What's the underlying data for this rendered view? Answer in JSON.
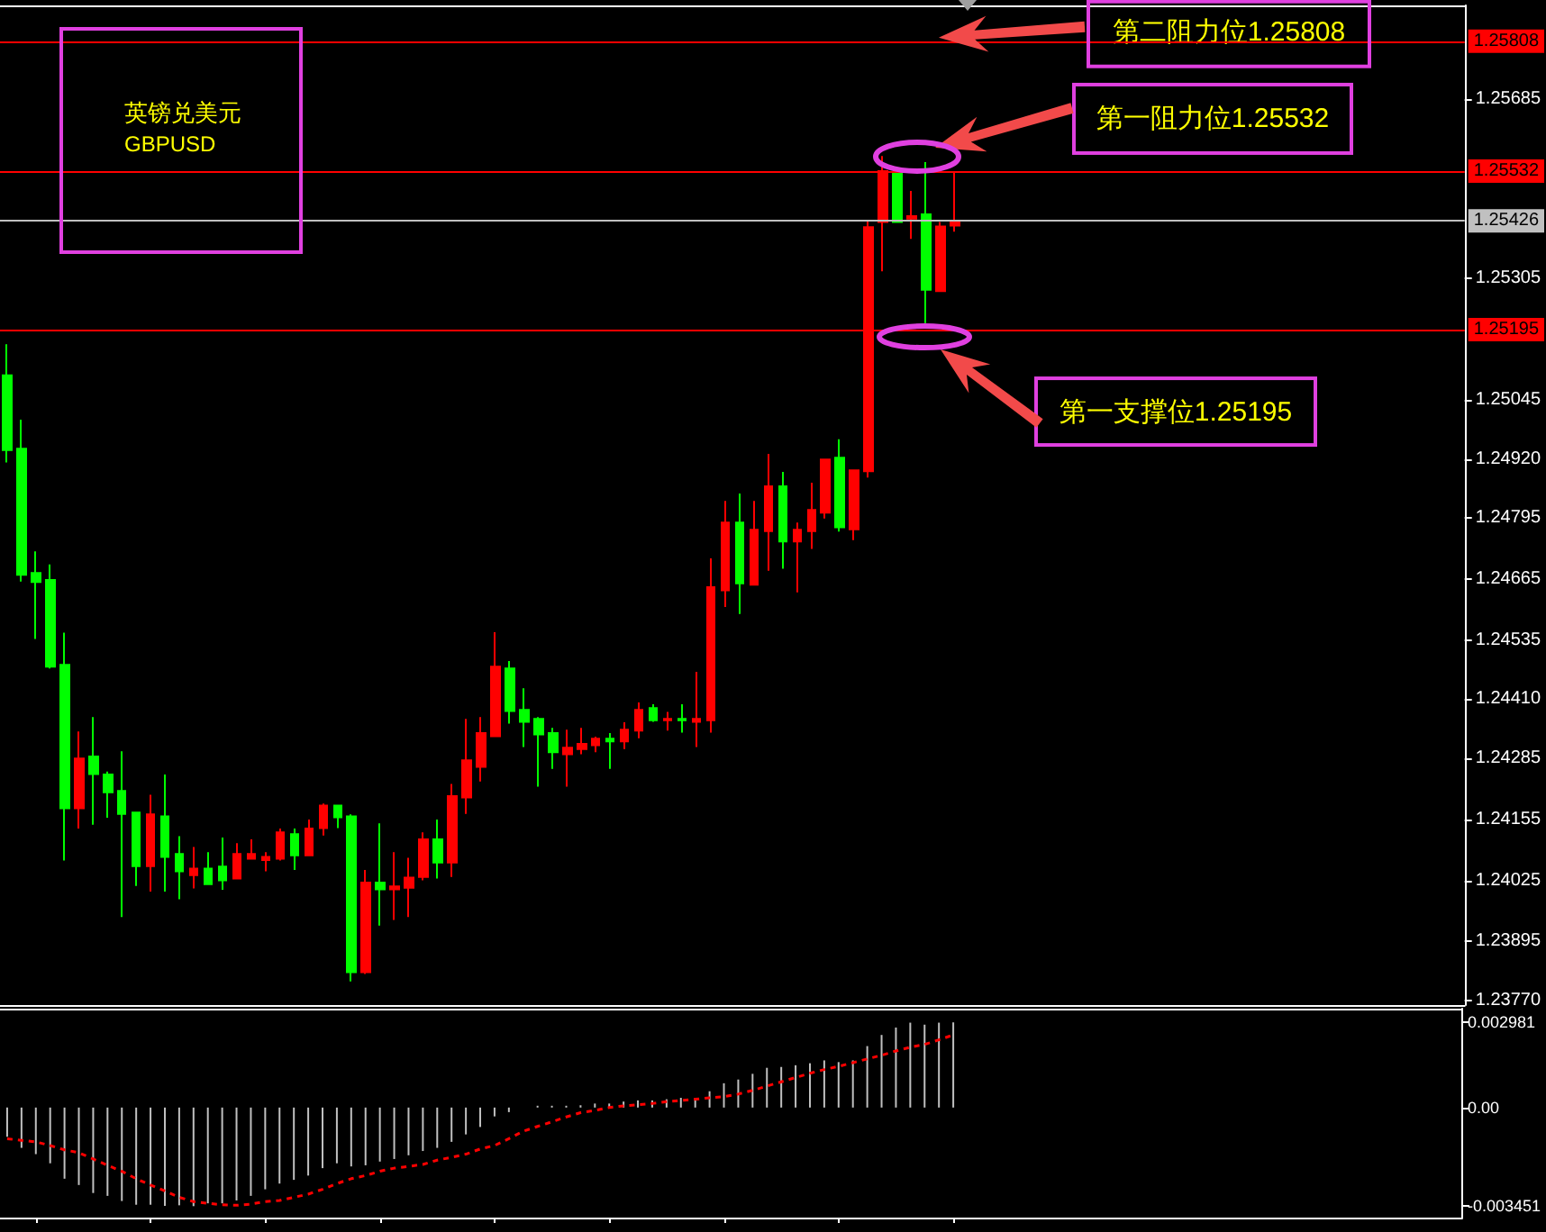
{
  "chart_data": [
    {
      "type": "candlestick",
      "title": "英镑兑美元",
      "subtitle": "GBPUSD",
      "categories": [
        null,
        null,
        null,
        null,
        null,
        null,
        null,
        null,
        null,
        null,
        null,
        null,
        null,
        null,
        null,
        null,
        null,
        null,
        null,
        null,
        null,
        null,
        null,
        null,
        null,
        null,
        null,
        null,
        null,
        null,
        null,
        null,
        null,
        null,
        null,
        null,
        null,
        null,
        null,
        null,
        null,
        null,
        null,
        null,
        null,
        null,
        null,
        null,
        null,
        null,
        null,
        null,
        null,
        null,
        null,
        null,
        null,
        null,
        null,
        null,
        null,
        null,
        null,
        null,
        null,
        null,
        null,
        null,
        null,
        null,
        null,
        null,
        null,
        null,
        null,
        null,
        null,
        null,
        null,
        null,
        null,
        null,
        null,
        null,
        null,
        null,
        null,
        null,
        null,
        null,
        null,
        null,
        null,
        null,
        null,
        null,
        null,
        null,
        null,
        null,
        null,
        null
      ],
      "ohlc": [
        [
          1.25098,
          1.25164,
          1.24913,
          1.24939
        ],
        [
          1.24942,
          1.25004,
          1.2466,
          1.24674
        ],
        [
          1.24678,
          1.24724,
          1.24538,
          1.24659
        ],
        [
          1.24663,
          1.24696,
          1.24475,
          1.24479
        ],
        [
          1.24483,
          1.24551,
          1.24067,
          1.24178
        ],
        [
          1.24178,
          1.24341,
          1.24135,
          1.24284
        ],
        [
          1.24288,
          1.24372,
          1.24143,
          1.24251
        ],
        [
          1.2425,
          1.24256,
          1.24158,
          1.24212
        ],
        [
          1.24215,
          1.24299,
          1.23947,
          1.24166
        ],
        [
          1.24169,
          1.24169,
          1.24013,
          1.24055
        ],
        [
          1.24055,
          1.24207,
          1.24001,
          1.24165
        ],
        [
          1.24161,
          1.2425,
          1.24001,
          1.24075
        ],
        [
          1.24081,
          1.24119,
          1.23985,
          1.24044
        ],
        [
          1.24036,
          1.24096,
          1.24008,
          1.2405
        ],
        [
          1.2405,
          1.24085,
          1.24017,
          1.24017
        ],
        [
          1.24054,
          1.24116,
          1.24005,
          1.24025
        ],
        [
          1.24029,
          1.24104,
          1.24029,
          1.24081
        ],
        [
          1.24071,
          1.24112,
          1.24071,
          1.24081
        ],
        [
          1.24068,
          1.24085,
          1.24044,
          1.24075
        ],
        [
          1.24071,
          1.24135,
          1.24067,
          1.24127
        ],
        [
          1.24123,
          1.24135,
          1.24047,
          1.24078
        ],
        [
          1.24078,
          1.24154,
          1.24078,
          1.24135
        ],
        [
          1.24136,
          1.24188,
          1.2412,
          1.24184
        ],
        [
          1.24184,
          1.24184,
          1.24136,
          1.24159
        ],
        [
          1.24161,
          1.24165,
          1.2381,
          1.2383
        ],
        [
          1.2383,
          1.24047,
          1.23826,
          1.2402
        ],
        [
          1.2402,
          1.24146,
          1.23929,
          1.24006
        ],
        [
          1.24006,
          1.24085,
          1.23941,
          1.24012
        ],
        [
          1.24009,
          1.24073,
          1.23947,
          1.24031
        ],
        [
          1.24032,
          1.24127,
          1.24025,
          1.24112
        ],
        [
          1.24112,
          1.24154,
          1.24029,
          1.24063
        ],
        [
          1.24063,
          1.2423,
          1.24032,
          1.24204
        ],
        [
          1.24201,
          1.24368,
          1.24166,
          1.2428
        ],
        [
          1.24266,
          1.24372,
          1.24235,
          1.24338
        ],
        [
          1.24331,
          1.24552,
          1.24331,
          1.24479
        ],
        [
          1.24475,
          1.24491,
          1.24358,
          1.24385
        ],
        [
          1.24387,
          1.24433,
          1.24308,
          1.24362
        ],
        [
          1.24368,
          1.24372,
          1.24224,
          1.24335
        ],
        [
          1.24338,
          1.24349,
          1.24262,
          1.24297
        ],
        [
          1.24293,
          1.24345,
          1.24224,
          1.24307
        ],
        [
          1.24304,
          1.24349,
          1.24293,
          1.24315
        ],
        [
          1.24312,
          1.2433,
          1.24297,
          1.24326
        ],
        [
          1.24326,
          1.24338,
          1.24262,
          1.2432
        ],
        [
          1.2432,
          1.24361,
          1.24304,
          1.24345
        ],
        [
          1.24343,
          1.24403,
          1.24327,
          1.24387
        ],
        [
          1.24391,
          1.24399,
          1.24362,
          1.24365
        ],
        [
          1.24365,
          1.24383,
          1.24343,
          1.24368
        ],
        [
          1.24368,
          1.24399,
          1.24339,
          1.24365
        ],
        [
          1.24362,
          1.24468,
          1.24308,
          1.24368
        ],
        [
          1.24365,
          1.24709,
          1.24339,
          1.24648
        ],
        [
          1.24641,
          1.24831,
          1.24606,
          1.24785
        ],
        [
          1.24785,
          1.24847,
          1.24591,
          1.24656
        ],
        [
          1.24653,
          1.24831,
          1.24653,
          1.2477
        ],
        [
          1.24767,
          1.24931,
          1.24683,
          1.24862
        ],
        [
          1.24862,
          1.24893,
          1.24687,
          1.24745
        ],
        [
          1.24745,
          1.24785,
          1.24637,
          1.2477
        ],
        [
          1.24767,
          1.2487,
          1.24729,
          1.24812
        ],
        [
          1.24806,
          1.24919,
          1.24794,
          1.24919
        ],
        [
          1.24923,
          1.24962,
          1.24766,
          1.24775
        ],
        [
          1.24771,
          1.24896,
          1.24748,
          1.24896
        ],
        [
          1.24894,
          1.25427,
          1.24881,
          1.25413
        ],
        [
          1.25424,
          1.25564,
          1.25319,
          1.25532
        ],
        [
          1.25528,
          1.25532,
          1.25424,
          1.25424
        ],
        [
          1.25431,
          1.2549,
          1.25388,
          1.25436
        ],
        [
          1.2544,
          1.25551,
          1.25209,
          1.2528
        ],
        [
          1.25277,
          1.25424,
          1.25277,
          1.25414
        ],
        [
          1.25416,
          1.25529,
          1.25403,
          1.25426
        ],
        null,
        null,
        null,
        null,
        null,
        null,
        null,
        null,
        null,
        null,
        null,
        null,
        null,
        null,
        null,
        null,
        null,
        null,
        null,
        null,
        null,
        null,
        null,
        null,
        null,
        null,
        null,
        null,
        null,
        null,
        null,
        null,
        null,
        null,
        null
      ],
      "colors": [
        "#00ff00",
        "#00ff00",
        "#00ff00",
        "#00ff00",
        "#00ff00",
        "#ff0000",
        "#00ff00",
        "#00ff00",
        "#00ff00",
        "#00ff00",
        "#ff0000",
        "#00ff00",
        "#00ff00",
        "#ff0000",
        "#00ff00",
        "#00ff00",
        "#ff0000",
        "#ff0000",
        "#ff0000",
        "#ff0000",
        "#00ff00",
        "#ff0000",
        "#ff0000",
        "#00ff00",
        "#00ff00",
        "#ff0000",
        "#00ff00",
        "#ff0000",
        "#ff0000",
        "#ff0000",
        "#00ff00",
        "#ff0000",
        "#ff0000",
        "#ff0000",
        "#ff0000",
        "#00ff00",
        "#00ff00",
        "#00ff00",
        "#00ff00",
        "#ff0000",
        "#ff0000",
        "#ff0000",
        "#00ff00",
        "#ff0000",
        "#ff0000",
        "#00ff00",
        "#ff0000",
        "#00ff00",
        "#ff0000",
        "#ff0000",
        "#ff0000",
        "#00ff00",
        "#ff0000",
        "#ff0000",
        "#00ff00",
        "#ff0000",
        "#ff0000",
        "#ff0000",
        "#00ff00",
        "#ff0000",
        "#ff0000",
        "#ff0000",
        "#00ff00",
        "#ff0000",
        "#00ff00",
        "#ff0000",
        "#ff0000",
        null,
        null,
        null,
        null,
        null,
        null,
        null,
        null,
        null,
        null,
        null,
        null,
        null,
        null,
        null,
        null,
        null,
        null,
        null,
        null,
        null,
        null,
        null,
        null,
        null,
        null,
        null,
        null,
        null,
        null,
        null,
        null,
        null,
        null,
        null
      ],
      "ylim": [
        1.2376,
        1.25884
      ],
      "yticks": [
        {
          "value": 1.2377,
          "label": "1.23770"
        },
        1.23895,
        1.24025,
        1.24155,
        1.24285,
        {
          "value": 1.2441,
          "label": "1.24410"
        },
        1.24535,
        1.24665,
        1.24795,
        {
          "value": 1.2492,
          "label": "1.24920"
        },
        1.25045,
        1.25305,
        1.25685
      ],
      "ref_lines": [
        {
          "axis": "y",
          "value": 1.25808,
          "label": "1.25808",
          "color": "#ff0000"
        },
        {
          "axis": "y",
          "value": 1.25532,
          "label": "1.25532",
          "color": "#ff0000"
        },
        {
          "axis": "y",
          "value": 1.25426,
          "label": "1.25426",
          "color": "#c0c0c0"
        },
        {
          "axis": "y",
          "value": 1.25195,
          "label": "1.25195",
          "color": "#ff0000"
        }
      ],
      "annotations": [
        {
          "text": "第二阻力位1.25808",
          "y": 1.25808
        },
        {
          "text": "第一阻力位1.25532",
          "y": 1.25532
        },
        {
          "text": "第一支撑位1.25195",
          "y": 1.25195
        }
      ],
      "grid": false
    },
    {
      "type": "bar",
      "categories": [
        null,
        null,
        null,
        null,
        null,
        null,
        null,
        null,
        null,
        null,
        null,
        null,
        null,
        null,
        null,
        null,
        null,
        null,
        null,
        null,
        null,
        null,
        null,
        null,
        null,
        null,
        null,
        null,
        null,
        null,
        null,
        null,
        null,
        null,
        null,
        null,
        null,
        null,
        null,
        null,
        null,
        null,
        null,
        null,
        null,
        null,
        null,
        null,
        null,
        null,
        null,
        null,
        null,
        null,
        null,
        null,
        null,
        null,
        null,
        null,
        null,
        null,
        null,
        null,
        null,
        null,
        null,
        null,
        null,
        null,
        null,
        null,
        null,
        null,
        null,
        null,
        null,
        null,
        null,
        null,
        null,
        null,
        null,
        null,
        null,
        null,
        null,
        null,
        null,
        null,
        null,
        null,
        null,
        null,
        null,
        null,
        null,
        null,
        null,
        null,
        null,
        null
      ],
      "series": [
        {
          "color": "#c0c0c0",
          "values": [
            -0.00102,
            -0.00141,
            -0.00163,
            -0.00195,
            -0.00249,
            -0.00271,
            -0.00299,
            -0.00309,
            -0.00327,
            -0.0034,
            -0.0034,
            -0.00344,
            -0.00342,
            -0.00345,
            -0.00335,
            -0.00335,
            -0.00325,
            -0.00309,
            -0.00286,
            -0.00266,
            -0.00253,
            -0.00238,
            -0.00212,
            -0.00195,
            -0.00206,
            -0.00202,
            -0.00189,
            -0.0018,
            -0.00167,
            -0.00152,
            -0.00141,
            -0.0012,
            -0.00094,
            -0.00068,
            -0.00031,
            -0.00016,
            null,
            2e-05,
            2e-05,
            3e-05,
            8e-05,
            0.00014,
            0.00014,
            0.00021,
            0.00025,
            0.00025,
            0.00029,
            0.00034,
            0.00034,
            0.00057,
            0.00085,
            0.00098,
            0.00118,
            0.00139,
            0.00142,
            0.00148,
            0.00155,
            0.00165,
            0.00159,
            0.00165,
            0.00215,
            0.00254,
            0.0028,
            0.00297,
            0.0029,
            0.00297,
            0.00298,
            null,
            null,
            null,
            null,
            null,
            null,
            null,
            null,
            null,
            null,
            null,
            null,
            null,
            null,
            null,
            null,
            null,
            null,
            null,
            null,
            null,
            null,
            null,
            null,
            null,
            null,
            null,
            null,
            null,
            null,
            null,
            null,
            null,
            null,
            null
          ]
        },
        {
          "type": "line",
          "color": "#ff0000",
          "line_style": "dotted",
          "marker": "none",
          "values": [
            -0.00109,
            -0.00115,
            -0.0012,
            -0.00133,
            -0.00148,
            -0.00158,
            -0.0018,
            -0.00202,
            -0.00223,
            -0.00249,
            -0.00271,
            -0.00292,
            -0.00314,
            -0.00329,
            -0.00335,
            -0.0034,
            -0.00342,
            -0.00338,
            -0.00329,
            -0.00325,
            -0.00314,
            -0.00303,
            -0.00286,
            -0.00266,
            -0.00249,
            -0.00238,
            -0.00223,
            -0.00212,
            -0.00206,
            -0.00199,
            -0.00184,
            -0.00174,
            -0.00163,
            -0.00145,
            -0.00133,
            -0.00109,
            -0.00083,
            -0.00066,
            -0.0005,
            -0.00033,
            -0.00018,
            -0.0001,
            0,
            6e-05,
            0.0001,
            0.00014,
            0.00021,
            0.00025,
            0.00029,
            0.00034,
            0.00038,
            0.00047,
            0.0006,
            0.00075,
            0.0009,
            0.00105,
            0.0012,
            0.00133,
            0.00144,
            0.00157,
            0.0017,
            0.00183,
            0.00198,
            0.00211,
            0.00221,
            0.00237,
            0.00254,
            null,
            null,
            null,
            null,
            null,
            null,
            null,
            null,
            null,
            null,
            null,
            null,
            null,
            null,
            null,
            null,
            null,
            null,
            null,
            null,
            null,
            null,
            null,
            null,
            null,
            null,
            null,
            null,
            null,
            null,
            null,
            null,
            null,
            null,
            null
          ]
        }
      ],
      "ylim": [
        -0.00385,
        0.00346
      ],
      "yticks": [
        -0.003451,
        {
          "value": 0,
          "label": "0.00"
        },
        0.002981
      ],
      "grid": false
    }
  ]
}
